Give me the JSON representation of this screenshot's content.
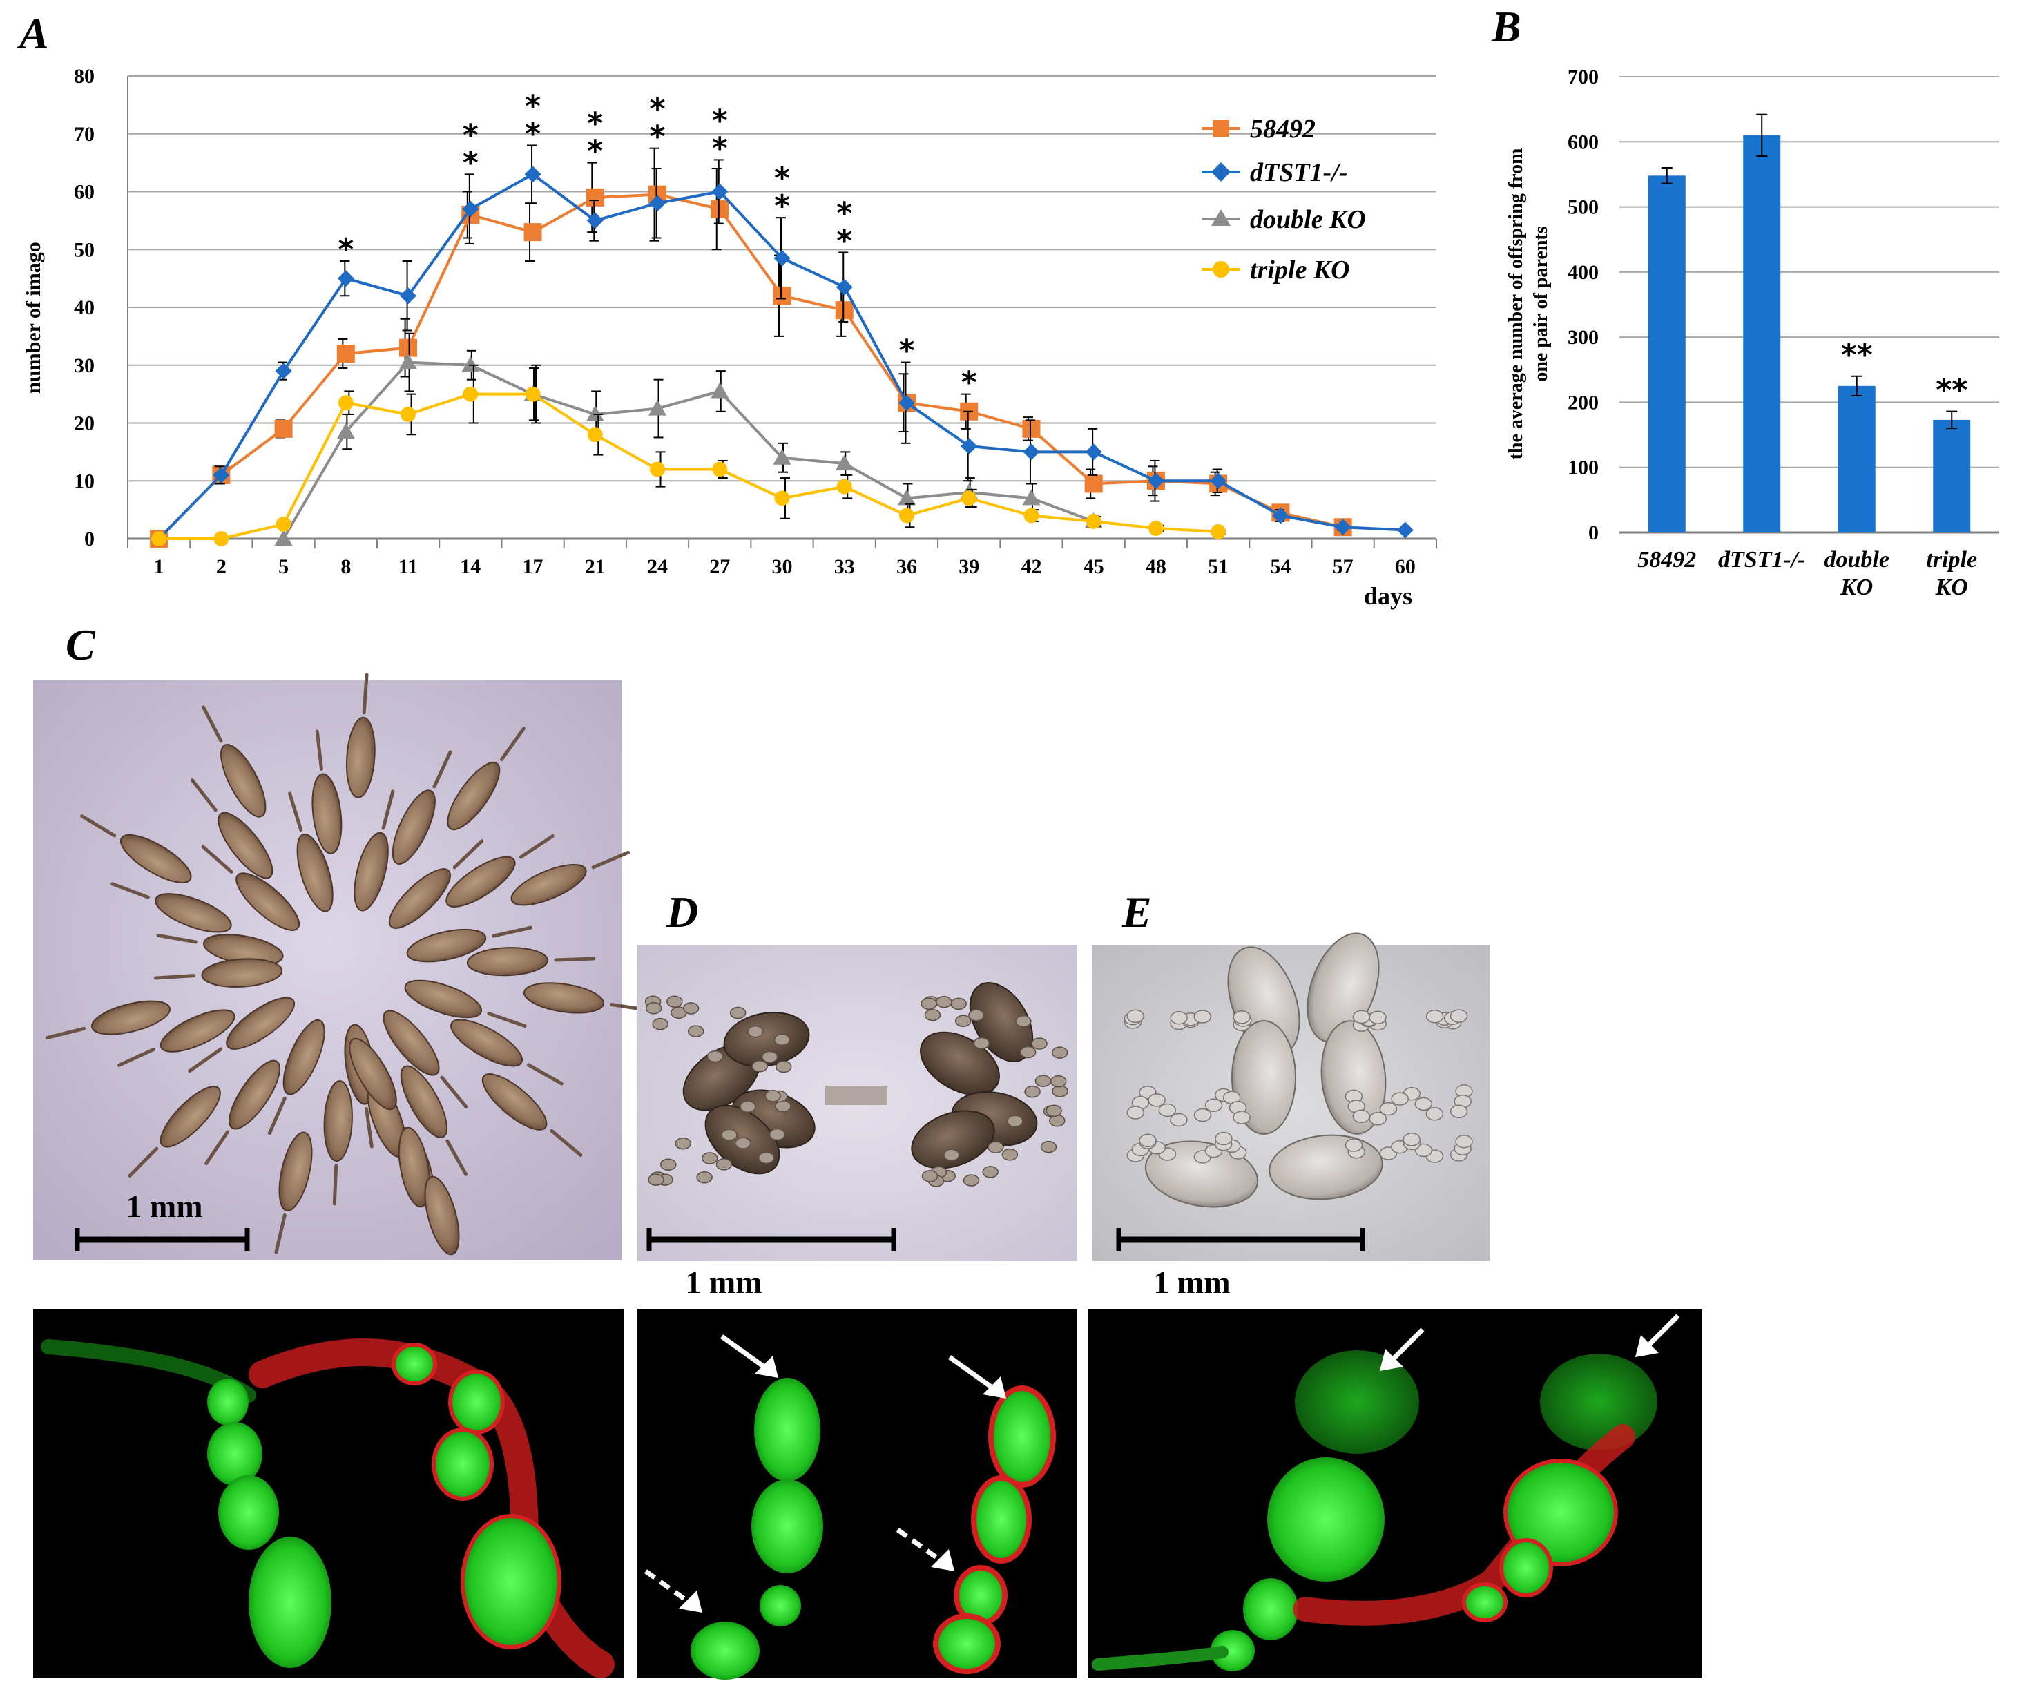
{
  "panels": {
    "a": "A",
    "b": "B",
    "c": "C",
    "d": "D",
    "e": "E"
  },
  "colors": {
    "58492": "#ED7D31",
    "dtst1": "#1F6BC4",
    "double_ko": "#8C8C8C",
    "triple_ko": "#FFC000",
    "bar": "#1874CD",
    "grid": "#A6A6A6"
  },
  "chart_data": [
    {
      "type": "line",
      "panel": "A",
      "xlabel": "days",
      "ylabel": "number of imago",
      "ylim": [
        0,
        80
      ],
      "yticks": [
        "0",
        "10",
        "20",
        "30",
        "40",
        "50",
        "60",
        "70",
        "80"
      ],
      "categories": [
        "1",
        "2",
        "5",
        "8",
        "11",
        "14",
        "17",
        "21",
        "24",
        "27",
        "30",
        "33",
        "36",
        "39",
        "42",
        "45",
        "48",
        "51",
        "54",
        "57",
        "60"
      ],
      "grid": true,
      "legend_position": "top-right",
      "series": [
        {
          "name": "58492",
          "color": "#ED7D31",
          "marker": "square",
          "values": [
            0,
            11,
            19,
            32,
            33,
            56,
            53,
            59,
            59.5,
            57,
            42,
            39.5,
            23.5,
            22,
            19,
            9.5,
            10,
            9.5,
            4.5,
            2,
            null
          ],
          "errors": [
            0,
            1.5,
            1.5,
            2.5,
            5,
            4,
            5,
            6,
            8,
            7,
            7,
            4.5,
            5,
            3,
            2,
            2.5,
            2.5,
            2,
            1,
            0.5,
            null
          ]
        },
        {
          "name": "dTST1-/-",
          "color": "#1F6BC4",
          "marker": "diamond",
          "values": [
            0,
            11,
            29,
            45,
            42,
            57,
            63,
            55,
            58,
            60,
            48.5,
            43.5,
            23.5,
            16,
            15,
            15,
            10,
            10,
            4,
            2,
            1.5
          ],
          "errors": [
            0,
            1.5,
            1.5,
            3,
            6,
            6,
            5,
            3.5,
            6,
            5.5,
            7,
            6,
            7,
            6,
            5.5,
            4,
            3.5,
            2,
            1,
            0.5,
            0.3
          ]
        },
        {
          "name": "double KO",
          "color": "#8C8C8C",
          "marker": "triangle",
          "values": [
            null,
            null,
            0,
            18.5,
            30.5,
            30,
            25,
            21.5,
            22.5,
            25.5,
            14,
            13,
            7,
            8,
            7,
            3,
            null,
            null,
            null,
            null,
            null
          ],
          "errors": [
            null,
            null,
            0,
            3,
            5,
            2.5,
            4.5,
            4,
            5,
            3.5,
            2.5,
            2,
            2.5,
            2.5,
            2.5,
            1,
            null,
            null,
            null,
            null,
            null
          ]
        },
        {
          "name": "triple KO",
          "color": "#FFC000",
          "marker": "circle",
          "values": [
            0,
            0,
            2.5,
            23.5,
            21.5,
            25,
            25,
            18,
            12,
            12,
            7,
            9,
            4,
            7,
            4,
            3,
            1.8,
            1.2,
            null,
            null,
            null
          ],
          "errors": [
            0,
            0,
            0.5,
            2,
            3.5,
            5,
            5,
            3.5,
            3,
            1.5,
            3.5,
            2,
            2,
            1.5,
            1,
            0.8,
            0.5,
            0.3,
            null,
            null,
            null
          ]
        }
      ],
      "annotations": [
        {
          "category": "8",
          "text": "*",
          "stack": 1
        },
        {
          "category": "14",
          "text": "*",
          "stack": 2
        },
        {
          "category": "17",
          "text": "*",
          "stack": 2
        },
        {
          "category": "21",
          "text": "*",
          "stack": 2
        },
        {
          "category": "24",
          "text": "*",
          "stack": 2
        },
        {
          "category": "27",
          "text": "*",
          "stack": 2
        },
        {
          "category": "30",
          "text": "*",
          "stack": 2
        },
        {
          "category": "33",
          "text": "*",
          "stack": 2
        },
        {
          "category": "36",
          "text": "*",
          "stack": 1
        },
        {
          "category": "39",
          "text": "*",
          "stack": 1
        }
      ]
    },
    {
      "type": "bar",
      "panel": "B",
      "ylabel_line1": "the average number of offspring from",
      "ylabel_line2": "one pair of parents",
      "ylim": [
        0,
        700
      ],
      "yticks": [
        "0",
        "100",
        "200",
        "300",
        "400",
        "500",
        "600",
        "700"
      ],
      "grid": true,
      "categories": [
        [
          "58492"
        ],
        [
          "dTST1-/-"
        ],
        [
          "double",
          "KO"
        ],
        [
          "triple",
          "KO"
        ]
      ],
      "values": [
        548,
        610,
        225,
        173
      ],
      "errors": [
        12,
        32,
        15,
        13
      ],
      "annotations": [
        "",
        "",
        "**",
        "**"
      ]
    }
  ],
  "scalebars": {
    "c": "1 mm",
    "d": "1 mm",
    "e": "1 mm"
  }
}
